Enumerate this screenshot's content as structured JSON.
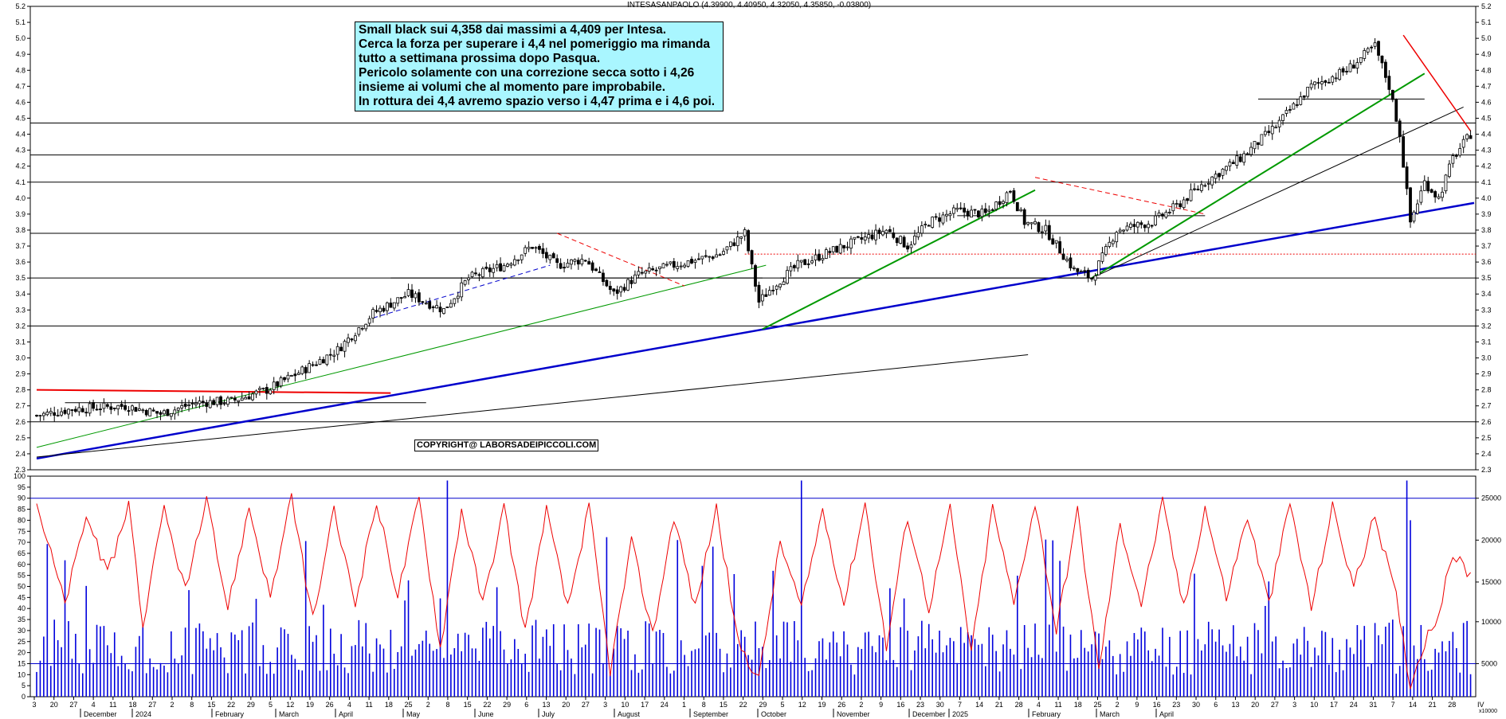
{
  "header": {
    "title": "INTESASANPAOLO (4.39900, 4.40950, 4.32050, 4.35850, -0.03800)"
  },
  "annotation": {
    "lines": [
      "Small black sui 4,358 dai massimi a 4,409 per Intesa.",
      "Cerca la forza per superare i 4,4 nel pomeriggio ma rimanda",
      "tutto a settimana prossima dopo Pasqua.",
      "Pericolo solamente con una correzione secca sotto i 4,26",
      "insieme ai volumi che al momento pare improbabile.",
      "In rottura dei 4,4 avremo spazio verso i 4,47 prima e i 4,6 poi."
    ]
  },
  "copyright": "COPYRIGHT@ LABORSADEIPICCOLI.COM",
  "colors": {
    "candle": "#000000",
    "trend_blue": "#0000cc",
    "trend_green": "#009900",
    "trend_red": "#ee0000",
    "oscillator": "#ee0000",
    "volume": "#0000dd",
    "note_bg": "#a9f6ff"
  },
  "chart_data": [
    {
      "type": "candlestick",
      "title": "INTESASANPAOLO",
      "ylim": [
        2.3,
        5.2
      ],
      "y_ticks": [
        "2.3",
        "2.4",
        "2.5",
        "2.6",
        "2.7",
        "2.8",
        "2.9",
        "3.0",
        "3.1",
        "3.2",
        "3.3",
        "3.4",
        "3.5",
        "3.6",
        "3.7",
        "3.8",
        "3.9",
        "4.0",
        "4.1",
        "4.2",
        "4.3",
        "4.4",
        "4.5",
        "4.6",
        "4.7",
        "4.8",
        "4.9",
        "5.0",
        "5.1",
        "5.2"
      ],
      "last_bar": {
        "open": 4.399,
        "high": 4.4095,
        "low": 4.3205,
        "close": 4.3585,
        "change": -0.038
      },
      "horizontal_levels": [
        2.6,
        3.2,
        3.5,
        3.78,
        4.1,
        4.27,
        4.47
      ],
      "anchor_path": [
        [
          0,
          2.64
        ],
        [
          10,
          2.68
        ],
        [
          25,
          2.7
        ],
        [
          35,
          2.65
        ],
        [
          45,
          2.72
        ],
        [
          55,
          2.73
        ],
        [
          65,
          2.8
        ],
        [
          75,
          2.92
        ],
        [
          85,
          3.05
        ],
        [
          95,
          3.28
        ],
        [
          105,
          3.4
        ],
        [
          115,
          3.3
        ],
        [
          122,
          3.5
        ],
        [
          132,
          3.58
        ],
        [
          140,
          3.7
        ],
        [
          147,
          3.58
        ],
        [
          155,
          3.62
        ],
        [
          163,
          3.4
        ],
        [
          170,
          3.52
        ],
        [
          180,
          3.58
        ],
        [
          193,
          3.65
        ],
        [
          200,
          3.78
        ],
        [
          204,
          3.35
        ],
        [
          208,
          3.45
        ],
        [
          215,
          3.58
        ],
        [
          228,
          3.7
        ],
        [
          240,
          3.8
        ],
        [
          246,
          3.7
        ],
        [
          252,
          3.85
        ],
        [
          260,
          3.92
        ],
        [
          268,
          3.9
        ],
        [
          275,
          4.05
        ],
        [
          279,
          3.85
        ],
        [
          285,
          3.8
        ],
        [
          293,
          3.55
        ],
        [
          298,
          3.5
        ],
        [
          305,
          3.8
        ],
        [
          315,
          3.85
        ],
        [
          322,
          3.95
        ],
        [
          330,
          4.1
        ],
        [
          340,
          4.25
        ],
        [
          350,
          4.45
        ],
        [
          360,
          4.7
        ],
        [
          370,
          4.8
        ],
        [
          378,
          4.95
        ],
        [
          382,
          4.7
        ],
        [
          385,
          4.4
        ],
        [
          388,
          3.85
        ],
        [
          392,
          4.1
        ],
        [
          396,
          4.0
        ],
        [
          400,
          4.25
        ],
        [
          405,
          4.4
        ]
      ]
    },
    {
      "type": "line+bar",
      "ylim": [
        0,
        100
      ],
      "y_ticks": [
        "0",
        "5",
        "10",
        "15",
        "20",
        "25",
        "30",
        "35",
        "40",
        "45",
        "50",
        "55",
        "60",
        "65",
        "70",
        "75",
        "80",
        "85",
        "90",
        "95",
        "100"
      ],
      "right_ticks": [
        "5000",
        "10000",
        "15000",
        "20000",
        "25000"
      ],
      "hlines": [
        15,
        90
      ],
      "series": [
        {
          "name": "",
          "kind": "oscillator",
          "anchors": [
            [
              0,
              88
            ],
            [
              8,
              42
            ],
            [
              14,
              82
            ],
            [
              20,
              55
            ],
            [
              26,
              88
            ],
            [
              30,
              32
            ],
            [
              36,
              85
            ],
            [
              42,
              48
            ],
            [
              48,
              88
            ],
            [
              54,
              40
            ],
            [
              60,
              86
            ],
            [
              66,
              45
            ],
            [
              72,
              90
            ],
            [
              78,
              35
            ],
            [
              84,
              84
            ],
            [
              90,
              42
            ],
            [
              96,
              88
            ],
            [
              102,
              46
            ],
            [
              108,
              90
            ],
            [
              114,
              22
            ],
            [
              120,
              85
            ],
            [
              126,
              42
            ],
            [
              132,
              86
            ],
            [
              138,
              30
            ],
            [
              144,
              84
            ],
            [
              150,
              40
            ],
            [
              156,
              86
            ],
            [
              162,
              12
            ],
            [
              168,
              70
            ],
            [
              174,
              28
            ],
            [
              180,
              82
            ],
            [
              186,
              40
            ],
            [
              192,
              86
            ],
            [
              198,
              25
            ],
            [
              204,
              8
            ],
            [
              210,
              70
            ],
            [
              216,
              40
            ],
            [
              222,
              85
            ],
            [
              228,
              42
            ],
            [
              234,
              88
            ],
            [
              240,
              22
            ],
            [
              246,
              82
            ],
            [
              252,
              40
            ],
            [
              258,
              85
            ],
            [
              264,
              20
            ],
            [
              270,
              86
            ],
            [
              276,
              42
            ],
            [
              282,
              88
            ],
            [
              288,
              30
            ],
            [
              294,
              84
            ],
            [
              300,
              12
            ],
            [
              306,
              78
            ],
            [
              312,
              42
            ],
            [
              318,
              88
            ],
            [
              324,
              40
            ],
            [
              330,
              86
            ],
            [
              336,
              45
            ],
            [
              342,
              82
            ],
            [
              348,
              42
            ],
            [
              354,
              88
            ],
            [
              360,
              40
            ],
            [
              366,
              86
            ],
            [
              372,
              50
            ],
            [
              378,
              82
            ],
            [
              384,
              45
            ],
            [
              388,
              5
            ],
            [
              392,
              25
            ],
            [
              396,
              38
            ],
            [
              400,
              65
            ],
            [
              405,
              55
            ]
          ]
        },
        {
          "name": "",
          "kind": "volume",
          "note": "volumes drawn as bars"
        }
      ]
    }
  ],
  "x_axis": {
    "day_ticks": [
      "3",
      "20",
      "27",
      "4",
      "11",
      "18",
      "27",
      "2",
      "8",
      "15",
      "22",
      "29",
      "5",
      "12",
      "19",
      "26",
      "4",
      "11",
      "18",
      "25",
      "2",
      "8",
      "15",
      "22",
      "29",
      "6",
      "13",
      "20",
      "27",
      "3",
      "10",
      "17",
      "24",
      "1",
      "8",
      "15",
      "22",
      "29",
      "5",
      "12",
      "19",
      "26",
      "2",
      "9",
      "16",
      "23",
      "30",
      "7",
      "14",
      "21",
      "28",
      "4",
      "11",
      "18",
      "25",
      "2",
      "9",
      "16",
      "23",
      "30",
      "6",
      "13",
      "20",
      "27",
      "3",
      "10",
      "17",
      "24",
      "31",
      "7",
      "14",
      "21",
      "28"
    ],
    "month_labels": [
      "December",
      "2024",
      "February",
      "March",
      "April",
      "May",
      "June",
      "July",
      "August",
      "September",
      "October",
      "November",
      "December",
      "2025",
      "February",
      "March",
      "April"
    ],
    "right_edge_label": "IV",
    "scale_note": "x10000"
  }
}
